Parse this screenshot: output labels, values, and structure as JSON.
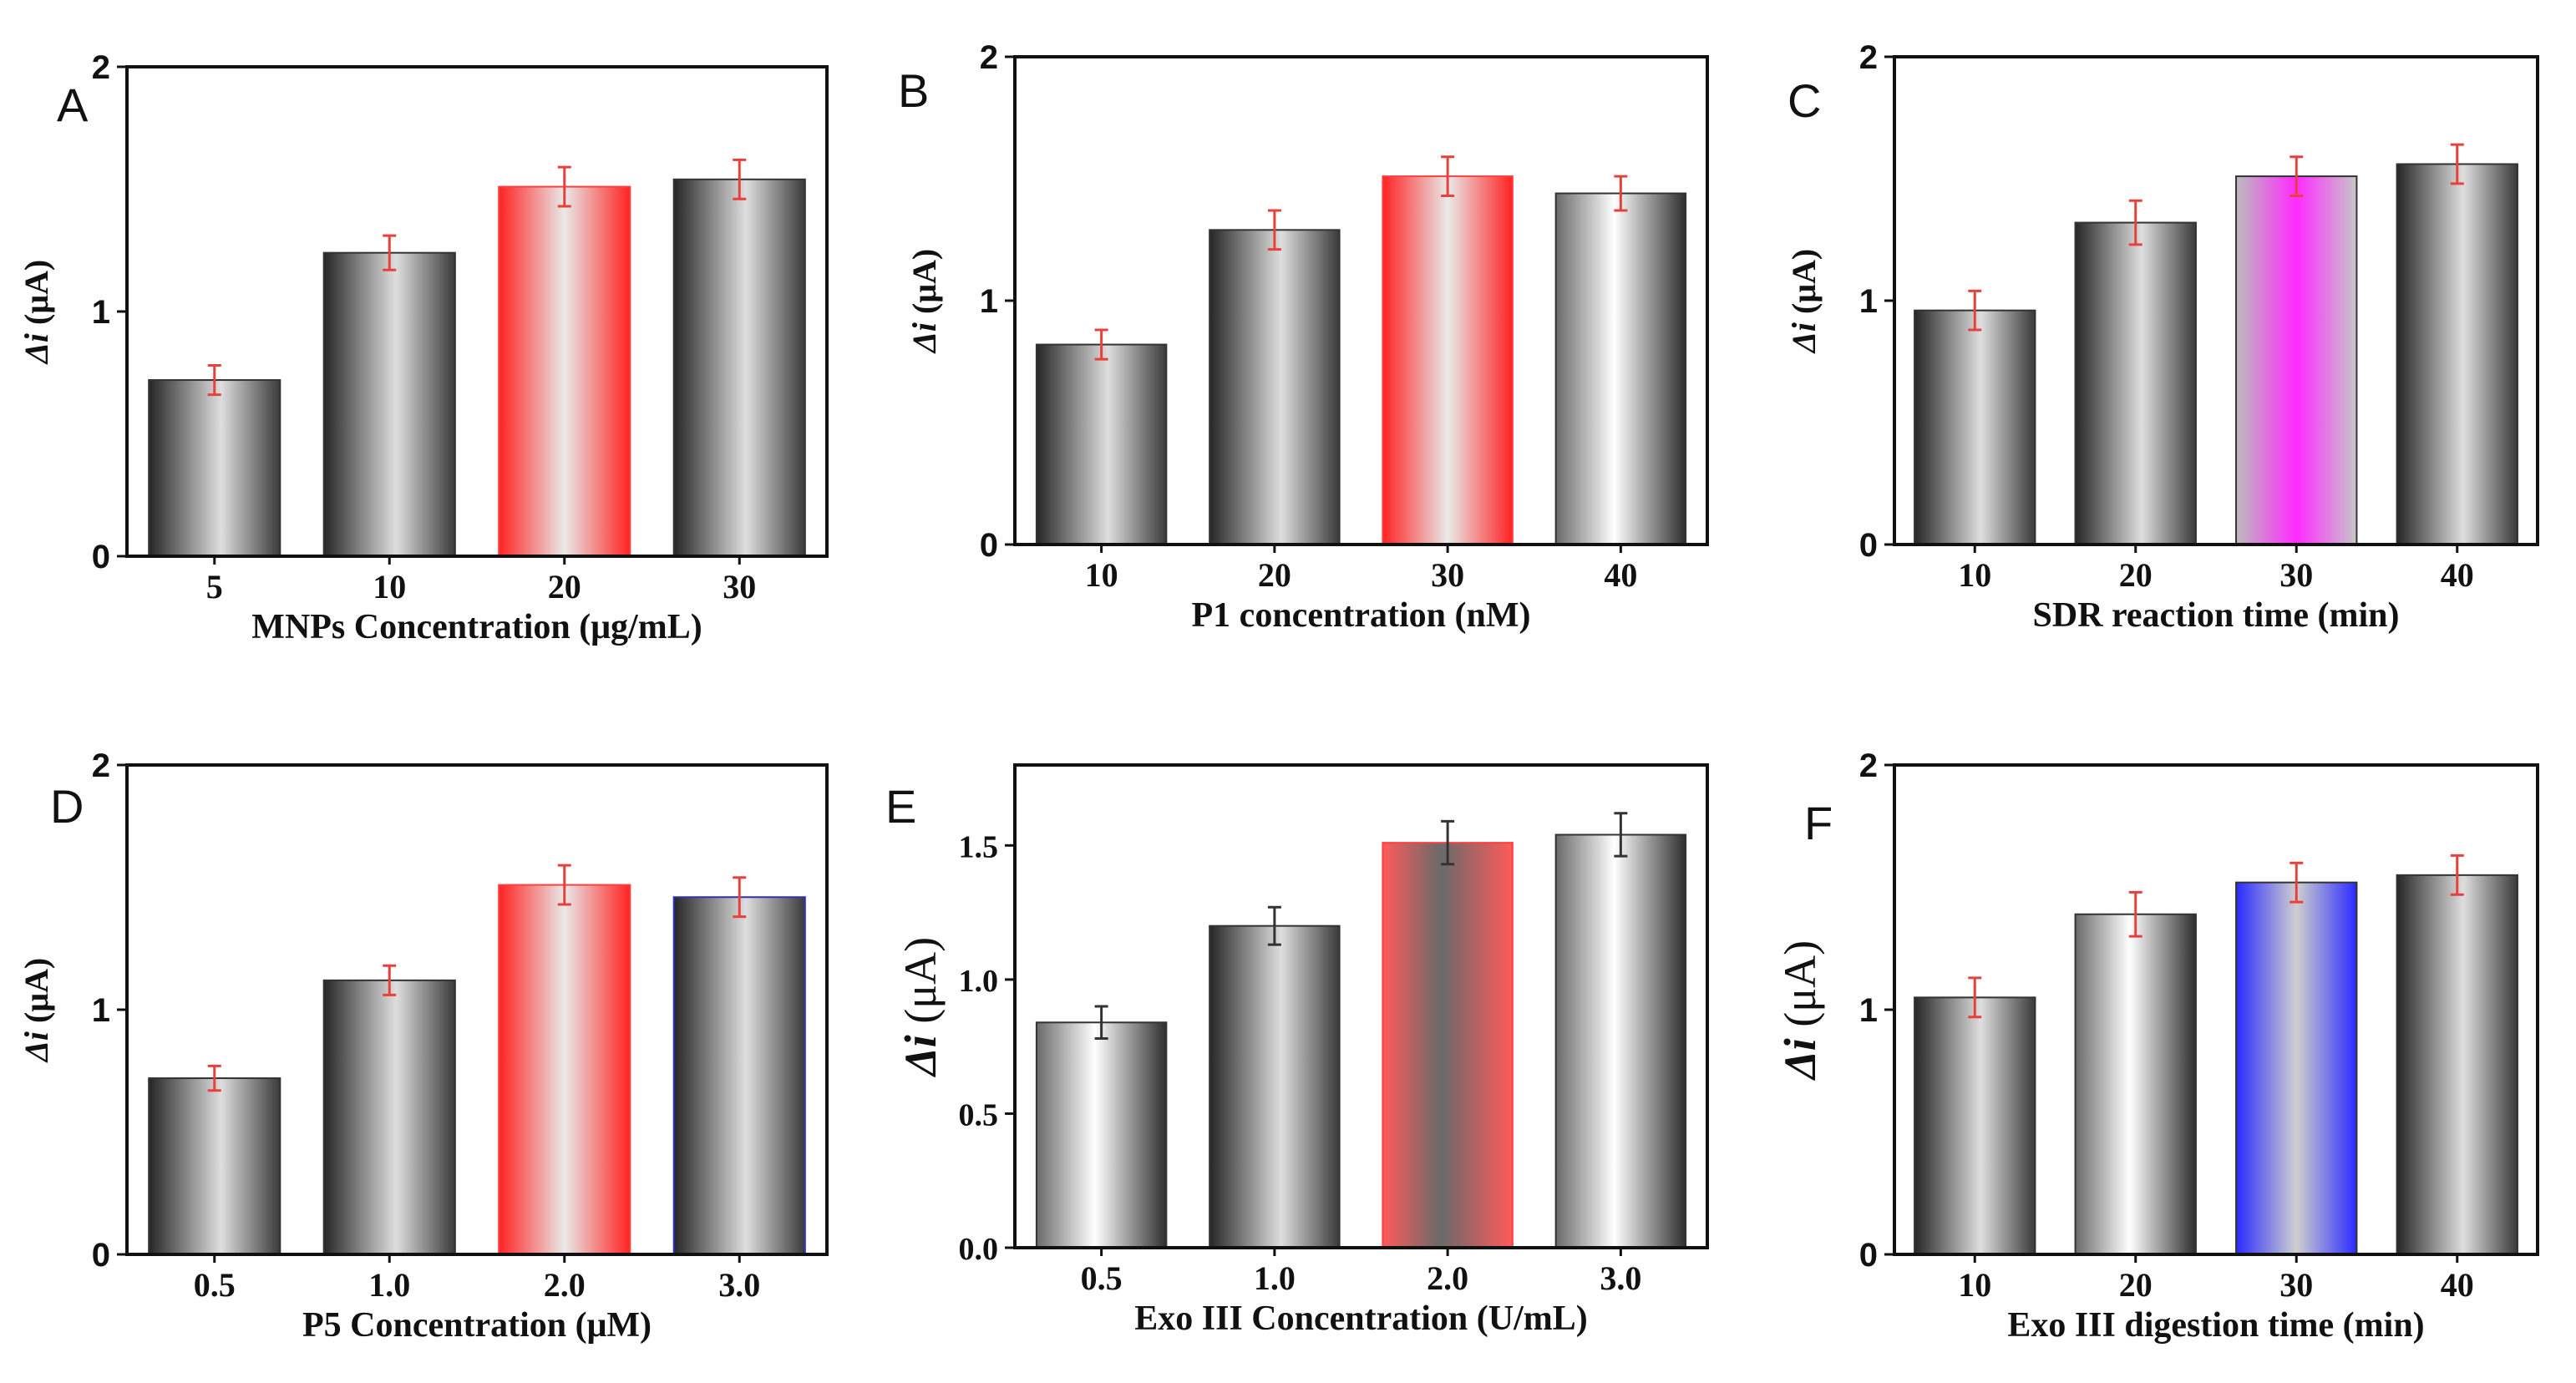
{
  "chart_data": [
    {
      "panel": "A",
      "type": "bar",
      "ylabel_prefix": "Δi",
      "ylabel_unit": "(μA)",
      "xlabel": "MNPs Concentration (μg/mL)",
      "categories": [
        "5",
        "10",
        "20",
        "30"
      ],
      "values": [
        0.72,
        1.24,
        1.51,
        1.54
      ],
      "errors": [
        0.06,
        0.07,
        0.08,
        0.08
      ],
      "ylim": [
        0,
        2
      ],
      "yticks": [
        {
          "v": 0,
          "label": "0"
        },
        {
          "v": 1,
          "label": "1"
        },
        {
          "v": 2,
          "label": "2"
        }
      ],
      "bar_styles": [
        "gray",
        "gray",
        "red",
        "gray"
      ],
      "error_color": "#e8413c"
    },
    {
      "panel": "B",
      "type": "bar",
      "ylabel_prefix": "Δi",
      "ylabel_unit": "(μA)",
      "xlabel": "P1 concentration (nM)",
      "categories": [
        "10",
        "20",
        "30",
        "40"
      ],
      "values": [
        0.82,
        1.29,
        1.51,
        1.44
      ],
      "errors": [
        0.06,
        0.08,
        0.08,
        0.07
      ],
      "ylim": [
        0,
        2
      ],
      "yticks": [
        {
          "v": 0,
          "label": "0"
        },
        {
          "v": 1,
          "label": "1"
        },
        {
          "v": 2,
          "label": "2"
        }
      ],
      "bar_styles": [
        "gray",
        "gray",
        "red",
        "white"
      ],
      "error_color": "#e8413c"
    },
    {
      "panel": "C",
      "type": "bar",
      "ylabel_prefix": "Δi",
      "ylabel_unit": "(μA)",
      "xlabel": "SDR reaction time (min)",
      "categories": [
        "10",
        "20",
        "30",
        "40"
      ],
      "values": [
        0.96,
        1.32,
        1.51,
        1.56
      ],
      "errors": [
        0.08,
        0.09,
        0.08,
        0.08
      ],
      "ylim": [
        0,
        2
      ],
      "yticks": [
        {
          "v": 0,
          "label": "0"
        },
        {
          "v": 1,
          "label": "1"
        },
        {
          "v": 2,
          "label": "2"
        }
      ],
      "bar_styles": [
        "gray",
        "gray",
        "magenta",
        "gray"
      ],
      "error_color": "#e8413c"
    },
    {
      "panel": "D",
      "type": "bar",
      "ylabel_prefix": "Δi",
      "ylabel_unit": "(μA)",
      "xlabel": "P5 Concentration (μM)",
      "categories": [
        "0.5",
        "1.0",
        "2.0",
        "3.0"
      ],
      "values": [
        0.72,
        1.12,
        1.51,
        1.46
      ],
      "errors": [
        0.05,
        0.06,
        0.08,
        0.08
      ],
      "ylim": [
        0,
        2
      ],
      "yticks": [
        {
          "v": 0,
          "label": "0"
        },
        {
          "v": 1,
          "label": "1"
        },
        {
          "v": 2,
          "label": "2"
        }
      ],
      "bar_styles": [
        "gray",
        "gray",
        "red",
        "gray"
      ],
      "error_color": "#e8413c"
    },
    {
      "panel": "E",
      "type": "bar",
      "ylabel_prefix": "Δi",
      "ylabel_unit": "(μA)",
      "xlabel": "Exo III Concentration (U/mL)",
      "categories": [
        "0.5",
        "1.0",
        "2.0",
        "3.0"
      ],
      "values": [
        0.84,
        1.2,
        1.51,
        1.54
      ],
      "errors": [
        0.06,
        0.07,
        0.08,
        0.08
      ],
      "ylim": [
        0,
        1.8
      ],
      "yticks": [
        {
          "v": 0,
          "label": "0.0"
        },
        {
          "v": 0.5,
          "label": "0.5"
        },
        {
          "v": 1,
          "label": "1.0"
        },
        {
          "v": 1.5,
          "label": "1.5"
        }
      ],
      "bar_styles": [
        "white",
        "gray",
        "red_dark",
        "white"
      ],
      "error_color": "#333333"
    },
    {
      "panel": "F",
      "type": "bar",
      "ylabel_prefix": "Δi",
      "ylabel_unit": "(μA)",
      "xlabel": "Exo III digestion time (min)",
      "categories": [
        "10",
        "20",
        "30",
        "40"
      ],
      "values": [
        1.05,
        1.39,
        1.52,
        1.55
      ],
      "errors": [
        0.08,
        0.09,
        0.08,
        0.08
      ],
      "ylim": [
        0,
        2
      ],
      "yticks": [
        {
          "v": 0,
          "label": "0"
        },
        {
          "v": 1,
          "label": "1"
        },
        {
          "v": 2,
          "label": "2"
        }
      ],
      "bar_styles": [
        "gray",
        "white",
        "blue",
        "gray"
      ],
      "error_color": "#e8413c"
    }
  ],
  "colors": {
    "gray_dark": "#2b2b2b",
    "gray_light": "#e6e6e6",
    "red": "#ff2b2b",
    "red_dark": "#ff5c5c",
    "magenta": "#ff33ff",
    "blue": "#2b2bff",
    "blue_light": "#c8c8c8"
  }
}
